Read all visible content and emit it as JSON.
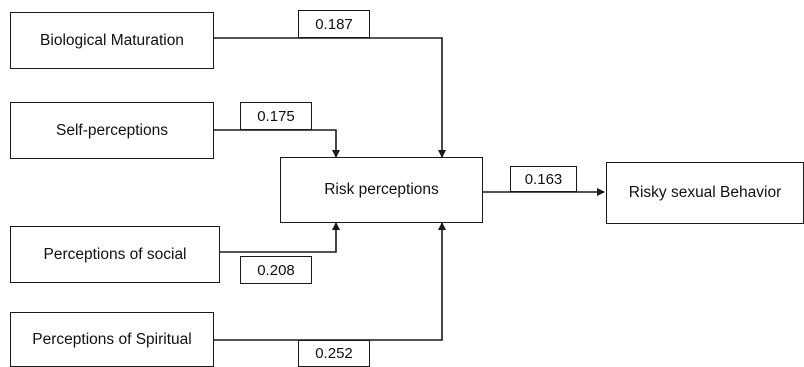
{
  "nodes": {
    "biological_maturation": "Biological Maturation",
    "self_perceptions": "Self-perceptions",
    "perceptions_of_social": "Perceptions of social",
    "perceptions_of_spiritual": "Perceptions of Spiritual",
    "risk_perceptions": "Risk perceptions",
    "risky_sexual_behavior": "Risky sexual Behavior"
  },
  "coefficients": {
    "biological_maturation": "0.187",
    "self_perceptions": "0.175",
    "perceptions_of_social": "0.208",
    "perceptions_of_spiritual": "0.252",
    "risk_perceptions": "0.163"
  },
  "colors": {
    "line": "#1a1a1a",
    "box_border": "#1a1a1a"
  }
}
